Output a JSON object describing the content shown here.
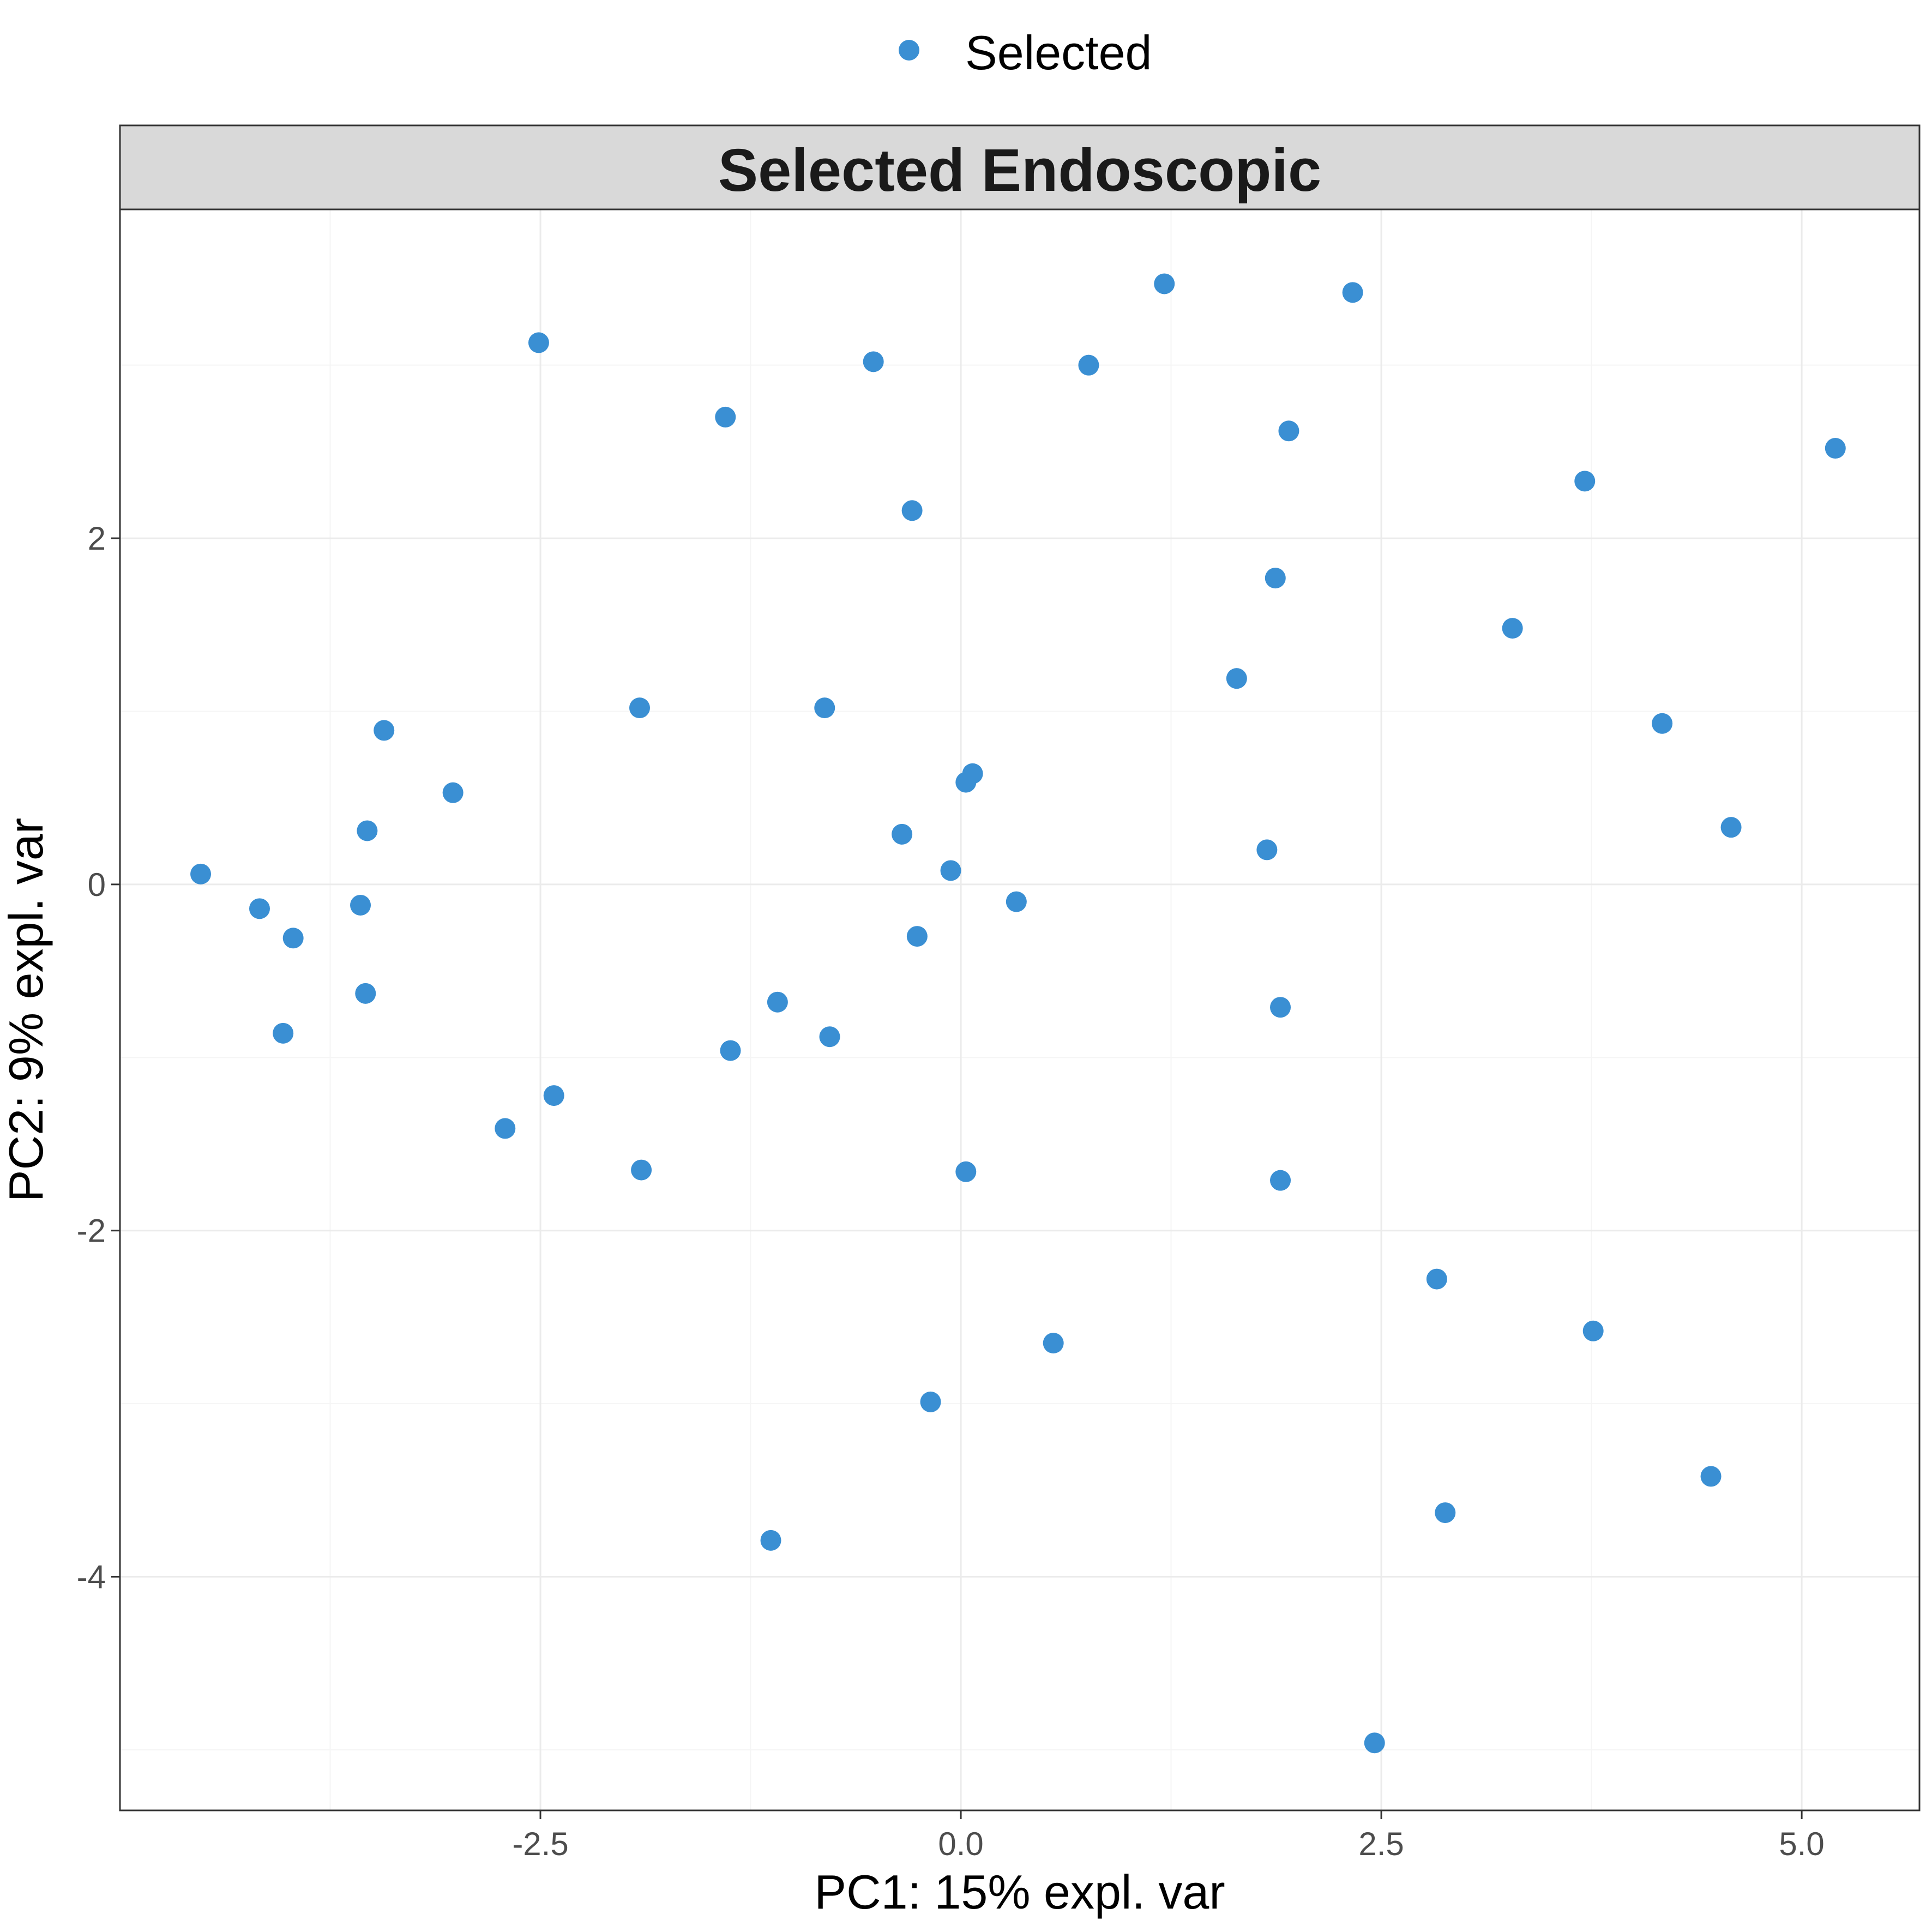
{
  "colors": {
    "point": "#3a8fd3",
    "strip_fill": "#d9d9d9",
    "grid_major": "#ebebeb",
    "grid_minor": "#f5f5f5",
    "frame": "#333333"
  },
  "legend": {
    "placement": "top-center",
    "label": "Selected"
  },
  "chart_data": {
    "type": "scatter",
    "title": "",
    "facet_label": "Selected Endoscopic",
    "xlabel": "PC1: 15% expl. var",
    "ylabel": "PC2: 9% expl. var",
    "xlim": [
      -5.0,
      5.7
    ],
    "ylim": [
      -5.35,
      3.9
    ],
    "x_ticks": [
      -2.5,
      0.0,
      2.5,
      5.0
    ],
    "x_tick_labels": [
      "-2.5",
      "0.0",
      "2.5",
      "5.0"
    ],
    "y_ticks": [
      -4,
      -2,
      0,
      2
    ],
    "y_tick_labels": [
      "-4",
      "-2",
      "0",
      "2"
    ],
    "grid": true,
    "series": [
      {
        "name": "Selected",
        "points": [
          [
            -4.52,
            0.06
          ],
          [
            -4.17,
            -0.14
          ],
          [
            -3.97,
            -0.31
          ],
          [
            -4.03,
            -0.86
          ],
          [
            -3.57,
            -0.12
          ],
          [
            -3.54,
            -0.63
          ],
          [
            -3.53,
            0.31
          ],
          [
            -3.43,
            0.89
          ],
          [
            -3.02,
            0.53
          ],
          [
            -2.71,
            -1.41
          ],
          [
            -2.51,
            3.13
          ],
          [
            -2.42,
            -1.22
          ],
          [
            -1.91,
            1.02
          ],
          [
            -1.9,
            -1.65
          ],
          [
            -1.4,
            2.7
          ],
          [
            -1.37,
            -0.96
          ],
          [
            -1.13,
            -3.79
          ],
          [
            -1.09,
            -0.68
          ],
          [
            -0.81,
            1.02
          ],
          [
            -0.78,
            -0.88
          ],
          [
            -0.52,
            3.02
          ],
          [
            -0.35,
            0.29
          ],
          [
            -0.29,
            2.16
          ],
          [
            -0.26,
            -0.3
          ],
          [
            -0.18,
            -2.99
          ],
          [
            -0.06,
            0.08
          ],
          [
            0.03,
            0.59
          ],
          [
            0.07,
            0.64
          ],
          [
            0.03,
            -1.66
          ],
          [
            0.33,
            -0.1
          ],
          [
            0.55,
            -2.65
          ],
          [
            0.76,
            3.0
          ],
          [
            1.21,
            3.47
          ],
          [
            1.64,
            1.19
          ],
          [
            1.82,
            0.2
          ],
          [
            1.87,
            1.77
          ],
          [
            1.9,
            -0.71
          ],
          [
            1.9,
            -1.71
          ],
          [
            1.95,
            2.62
          ],
          [
            2.33,
            3.42
          ],
          [
            2.46,
            -4.96
          ],
          [
            2.83,
            -2.28
          ],
          [
            2.88,
            -3.63
          ],
          [
            3.28,
            1.48
          ],
          [
            3.71,
            2.33
          ],
          [
            3.76,
            -2.58
          ],
          [
            4.17,
            0.93
          ],
          [
            4.46,
            -3.42
          ],
          [
            4.58,
            0.33
          ],
          [
            5.2,
            2.52
          ]
        ]
      }
    ]
  }
}
